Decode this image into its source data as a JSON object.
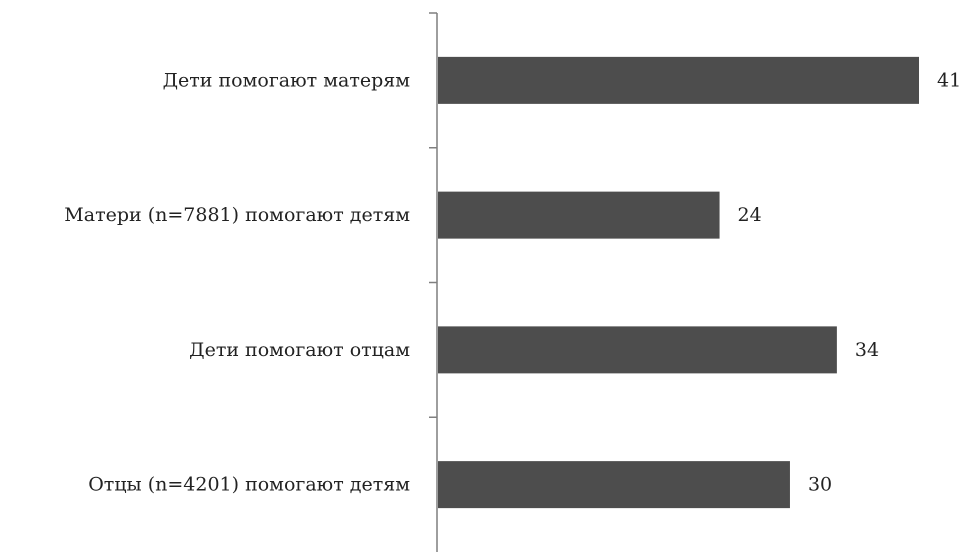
{
  "chart_data": {
    "type": "bar",
    "orientation": "horizontal",
    "categories": [
      "Дети помогают матерям",
      "Матери (n=7881)  помогают детям",
      "Дети помогают отцам",
      "Отцы (n=4201)  помогают детям"
    ],
    "values": [
      41,
      24,
      34,
      30
    ],
    "title": "",
    "xlabel": "",
    "ylabel": "",
    "xlim": [
      0,
      41
    ],
    "grid": false,
    "legend": "none",
    "data_labels": true,
    "bar_color": "#4d4d4d",
    "axis_color": "#7f7f7f"
  }
}
